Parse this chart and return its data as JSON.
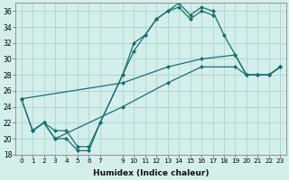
{
  "xlabel": "Humidex (Indice chaleur)",
  "background_color": "#d4eeeb",
  "grid_color": "#b0d8d4",
  "line_color": "#1a7070",
  "xlim": [
    -0.5,
    23.5
  ],
  "ylim": [
    18,
    37
  ],
  "yticks": [
    18,
    20,
    22,
    24,
    26,
    28,
    30,
    32,
    34,
    36
  ],
  "xticks": [
    0,
    1,
    2,
    3,
    4,
    5,
    6,
    7,
    9,
    10,
    11,
    12,
    13,
    14,
    15,
    16,
    17,
    18,
    19,
    20,
    21,
    22,
    23
  ],
  "lines": [
    {
      "x": [
        0,
        1,
        2,
        3,
        4,
        5,
        6,
        7,
        9,
        10,
        11,
        12,
        13,
        14,
        15,
        16,
        17,
        18,
        19,
        20,
        21,
        22,
        23
      ],
      "y": [
        25,
        21,
        22,
        21,
        21,
        19,
        19,
        22,
        28,
        32,
        33,
        35,
        36,
        37,
        35.5,
        36.5,
        36,
        33,
        30.5,
        28,
        28,
        28,
        29
      ]
    },
    {
      "x": [
        0,
        1,
        2,
        3,
        4,
        5,
        6,
        7,
        9,
        10,
        11,
        12,
        13,
        14,
        15,
        16,
        17
      ],
      "y": [
        25,
        21,
        22,
        20,
        20,
        18.5,
        18.5,
        22,
        28,
        31,
        33,
        35,
        36,
        36.5,
        35,
        36,
        35.5
      ]
    },
    {
      "x": [
        0,
        9,
        13,
        16,
        19,
        20,
        21,
        22,
        23
      ],
      "y": [
        25,
        27,
        29,
        30,
        30.5,
        28,
        28,
        28,
        29
      ]
    },
    {
      "x": [
        1,
        2,
        3,
        9,
        13,
        16,
        19,
        20,
        21,
        22,
        23
      ],
      "y": [
        21,
        22,
        20,
        24,
        27,
        29,
        29,
        28,
        28,
        28,
        29
      ]
    }
  ]
}
